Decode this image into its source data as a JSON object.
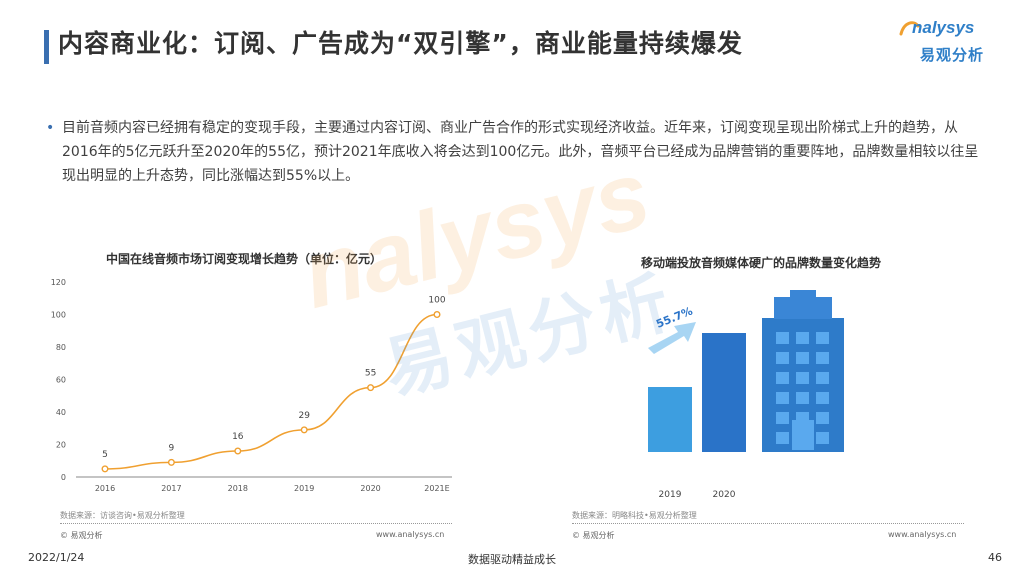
{
  "header": {
    "title": "内容商业化：订阅、广告成为“双引擎”，商业能量持续爆发",
    "logo_en": "nalysys",
    "logo_cn": "易观分析"
  },
  "body": {
    "paragraph": "目前音频内容已经拥有稳定的变现手段，主要通过内容订阅、商业广告合作的形式实现经济收益。近年来，订阅变现呈现出阶梯式上升的趋势，从2016年的5亿元跃升至2020年的55亿，预计2021年底收入将会达到100亿元。此外，音频平台已经成为品牌营销的重要阵地，品牌数量相较以往呈现出明显的上升态势，同比涨幅达到55%以上。"
  },
  "watermark": {
    "en": "nalysys",
    "cn": "易观分析"
  },
  "left_panel": {
    "title": "中国在线音频市场订阅变现增长趋势（单位：亿元）",
    "source": "数据来源：访谈咨询•易观分析整理",
    "copyright": "© 易观分析",
    "site": "www.analysys.cn"
  },
  "right_panel": {
    "title": "移动端投放音频媒体硬广的品牌数量变化趋势",
    "source": "数据来源：明略科技•易观分析整理",
    "copyright": "© 易观分析",
    "site": "www.analysys.cn",
    "growth_label": "55.7%"
  },
  "colors": {
    "accent": "#3a6fb0",
    "line": "#f0a030",
    "bar_light": "#3d9ee0",
    "bar_dark": "#2a73c8"
  },
  "chart_data": [
    {
      "type": "line",
      "title": "中国在线音频市场订阅变现增长趋势（单位：亿元）",
      "categories": [
        "2016",
        "2017",
        "2018",
        "2019",
        "2020",
        "2021E"
      ],
      "series": [
        {
          "values": [
            5,
            9,
            16,
            29,
            55,
            100
          ]
        }
      ],
      "ylim": [
        0,
        120
      ],
      "yticks": [
        0,
        20,
        40,
        60,
        80,
        100,
        120
      ],
      "grid": false
    },
    {
      "type": "bar",
      "title": "移动端投放音频媒体硬广的品牌数量变化趋势",
      "categories": [
        "2019",
        "2020"
      ],
      "annotation": "55.7%"
    }
  ],
  "footer": {
    "date": "2022/1/24",
    "center": "数据驱动精益成长",
    "page": "46"
  }
}
